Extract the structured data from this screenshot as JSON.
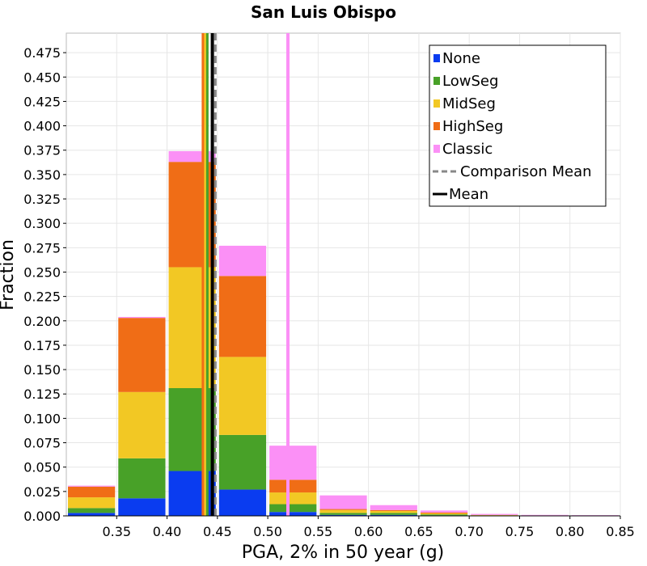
{
  "chart_data": {
    "type": "bar",
    "stacked": true,
    "title": "San Luis Obispo",
    "xlabel": "PGA, 2% in 50 year (g)",
    "ylabel": "Fraction",
    "xlim": [
      0.3,
      0.85
    ],
    "ylim": [
      0.0,
      0.495
    ],
    "bin_width": 0.05,
    "x_ticks": [
      {
        "value": 0.35,
        "label": "0.35"
      },
      {
        "value": 0.4,
        "label": "0.40"
      },
      {
        "value": 0.45,
        "label": "0.45"
      },
      {
        "value": 0.5,
        "label": "0.50"
      },
      {
        "value": 0.55,
        "label": "0.55"
      },
      {
        "value": 0.6,
        "label": "0.60"
      },
      {
        "value": 0.65,
        "label": "0.65"
      },
      {
        "value": 0.7,
        "label": "0.70"
      },
      {
        "value": 0.75,
        "label": "0.75"
      },
      {
        "value": 0.8,
        "label": "0.80"
      },
      {
        "value": 0.85,
        "label": "0.85"
      }
    ],
    "y_ticks": [
      {
        "value": 0.0,
        "label": "0.000"
      },
      {
        "value": 0.025,
        "label": "0.025"
      },
      {
        "value": 0.05,
        "label": "0.050"
      },
      {
        "value": 0.075,
        "label": "0.075"
      },
      {
        "value": 0.1,
        "label": "0.100"
      },
      {
        "value": 0.125,
        "label": "0.125"
      },
      {
        "value": 0.15,
        "label": "0.150"
      },
      {
        "value": 0.175,
        "label": "0.175"
      },
      {
        "value": 0.2,
        "label": "0.200"
      },
      {
        "value": 0.225,
        "label": "0.225"
      },
      {
        "value": 0.25,
        "label": "0.250"
      },
      {
        "value": 0.275,
        "label": "0.275"
      },
      {
        "value": 0.3,
        "label": "0.300"
      },
      {
        "value": 0.325,
        "label": "0.325"
      },
      {
        "value": 0.35,
        "label": "0.350"
      },
      {
        "value": 0.375,
        "label": "0.375"
      },
      {
        "value": 0.4,
        "label": "0.400"
      },
      {
        "value": 0.425,
        "label": "0.425"
      },
      {
        "value": 0.45,
        "label": "0.450"
      },
      {
        "value": 0.475,
        "label": "0.475"
      }
    ],
    "bin_centers": [
      0.325,
      0.375,
      0.425,
      0.475,
      0.525,
      0.575,
      0.625,
      0.675,
      0.725,
      0.775,
      0.825
    ],
    "series": [
      {
        "name": "None",
        "color": "#0a3cf0",
        "values": [
          0.003,
          0.018,
          0.046,
          0.027,
          0.004,
          0.001,
          0.001,
          0.0005,
          0.0002,
          0.0001,
          0.0001
        ]
      },
      {
        "name": "LowSeg",
        "color": "#48a128",
        "values": [
          0.005,
          0.041,
          0.085,
          0.056,
          0.008,
          0.002,
          0.002,
          0.001,
          0.0003,
          0.0001,
          0.0001
        ]
      },
      {
        "name": "MidSeg",
        "color": "#f2c824",
        "values": [
          0.011,
          0.068,
          0.124,
          0.08,
          0.012,
          0.003,
          0.002,
          0.001,
          0.0003,
          0.0002,
          0.0001
        ]
      },
      {
        "name": "HighSeg",
        "color": "#f06d16",
        "values": [
          0.011,
          0.076,
          0.108,
          0.083,
          0.013,
          0.001,
          0.001,
          0.001,
          0.0002,
          0.0001,
          0.0001
        ]
      },
      {
        "name": "Classic",
        "color": "#fb90f6",
        "values": [
          0.001,
          0.001,
          0.011,
          0.031,
          0.035,
          0.014,
          0.005,
          0.002,
          0.001,
          0.0005,
          0.0003
        ]
      }
    ],
    "vertical_lines": [
      {
        "name": "HighSeg mean",
        "x": 0.436,
        "color": "#f06d16",
        "width": 4,
        "dashed": false
      },
      {
        "name": "MidSeg mean",
        "x": 0.438,
        "color": "#f2c824",
        "width": 3,
        "dashed": false
      },
      {
        "name": "LowSeg mean",
        "x": 0.44,
        "color": "#48a128",
        "width": 3,
        "dashed": false
      },
      {
        "name": "Classic mean",
        "x": 0.52,
        "color": "#fb90f6",
        "width": 4,
        "dashed": false
      },
      {
        "name": "Comparison Mean",
        "x": 0.448,
        "color": "#888888",
        "width": 3,
        "dashed": true
      },
      {
        "name": "Mean",
        "x": 0.445,
        "color": "#000000",
        "width": 4,
        "dashed": false
      }
    ],
    "grid": true,
    "legend": {
      "position": "top-right",
      "entries": [
        {
          "label": "None",
          "color": "#0a3cf0",
          "style": "box"
        },
        {
          "label": "LowSeg",
          "color": "#48a128",
          "style": "box"
        },
        {
          "label": "MidSeg",
          "color": "#f2c824",
          "style": "box"
        },
        {
          "label": "HighSeg",
          "color": "#f06d16",
          "style": "box"
        },
        {
          "label": "Classic",
          "color": "#fb90f6",
          "style": "box"
        },
        {
          "label": "Comparison Mean",
          "color": "#888888",
          "style": "dashed-line"
        },
        {
          "label": "Mean",
          "color": "#000000",
          "style": "line"
        }
      ]
    }
  }
}
